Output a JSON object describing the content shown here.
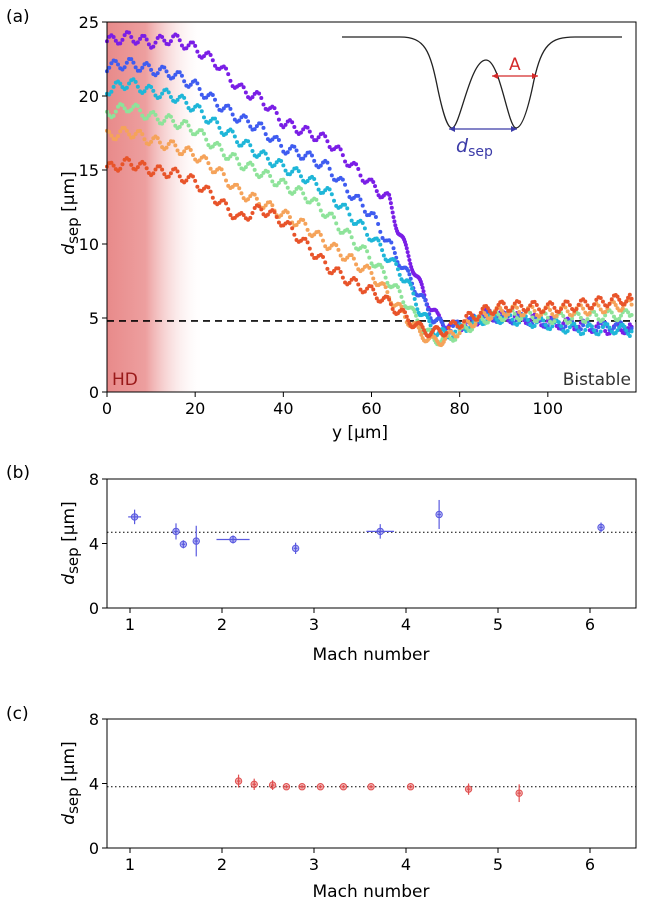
{
  "chart_data": [
    {
      "panel_label": "(a)",
      "type": "scatter",
      "xlabel": "y [μm]",
      "ylabel_main": "d",
      "ylabel_sub": "sep",
      "ylabel_unit": " [μm]",
      "xlim": [
        0,
        120
      ],
      "ylim": [
        0,
        25
      ],
      "xticks": [
        0,
        20,
        40,
        60,
        80,
        100
      ],
      "yticks": [
        0,
        5,
        10,
        15,
        20,
        25
      ],
      "hline": 4.8,
      "shaded_region": {
        "x": [
          0,
          22
        ],
        "label": "HD"
      },
      "annotation_right": "Bistable",
      "inset": {
        "label_width": "A",
        "label_sep": "d",
        "label_sep_sub": "sep"
      },
      "series": [
        {
          "color": "#7a1ee6",
          "points": [
            [
              0,
              23.7
            ],
            [
              5,
              24.0
            ],
            [
              10,
              23.6
            ],
            [
              15,
              23.9
            ],
            [
              20,
              23.2
            ],
            [
              25,
              22.2
            ],
            [
              30,
              20.5
            ],
            [
              35,
              19.8
            ],
            [
              40,
              18.2
            ],
            [
              45,
              17.6
            ],
            [
              50,
              17.0
            ],
            [
              55,
              15.5
            ],
            [
              60,
              14.0
            ],
            [
              64,
              13.0
            ],
            [
              66,
              11.0
            ],
            [
              68,
              9.5
            ],
            [
              70,
              8.0
            ],
            [
              72,
              6.5
            ],
            [
              75,
              5.0
            ],
            [
              78,
              4.4
            ],
            [
              82,
              4.6
            ],
            [
              86,
              5.2
            ],
            [
              90,
              5.1
            ],
            [
              95,
              5.0
            ],
            [
              100,
              4.7
            ],
            [
              105,
              4.6
            ],
            [
              110,
              4.4
            ],
            [
              115,
              4.2
            ],
            [
              119,
              4.4
            ]
          ]
        },
        {
          "color": "#3f5cf0",
          "points": [
            [
              0,
              22.0
            ],
            [
              5,
              22.2
            ],
            [
              10,
              21.8
            ],
            [
              15,
              21.5
            ],
            [
              20,
              20.7
            ],
            [
              25,
              19.5
            ],
            [
              30,
              18.5
            ],
            [
              35,
              17.8
            ],
            [
              40,
              16.5
            ],
            [
              45,
              16.0
            ],
            [
              50,
              15.2
            ],
            [
              55,
              13.5
            ],
            [
              60,
              12.0
            ],
            [
              65,
              9.5
            ],
            [
              68,
              8.0
            ],
            [
              71,
              6.5
            ],
            [
              74,
              5.0
            ],
            [
              77,
              4.2
            ],
            [
              82,
              4.7
            ],
            [
              86,
              5.2
            ],
            [
              90,
              5.0
            ],
            [
              95,
              4.9
            ],
            [
              100,
              4.7
            ],
            [
              105,
              4.5
            ],
            [
              110,
              4.4
            ],
            [
              115,
              4.5
            ],
            [
              119,
              4.3
            ]
          ]
        },
        {
          "color": "#1fb6d8",
          "points": [
            [
              0,
              20.4
            ],
            [
              5,
              20.9
            ],
            [
              10,
              20.3
            ],
            [
              15,
              20.0
            ],
            [
              20,
              19.2
            ],
            [
              25,
              18.0
            ],
            [
              30,
              17.0
            ],
            [
              35,
              16.0
            ],
            [
              40,
              15.2
            ],
            [
              45,
              14.5
            ],
            [
              50,
              13.5
            ],
            [
              55,
              12.0
            ],
            [
              60,
              10.5
            ],
            [
              64,
              9.0
            ],
            [
              68,
              7.5
            ],
            [
              71,
              5.5
            ],
            [
              74,
              4.2
            ],
            [
              77,
              3.8
            ],
            [
              82,
              4.5
            ],
            [
              86,
              5.0
            ],
            [
              90,
              5.0
            ],
            [
              95,
              4.8
            ],
            [
              100,
              4.6
            ],
            [
              105,
              4.3
            ],
            [
              110,
              4.2
            ],
            [
              115,
              4.3
            ],
            [
              119,
              4.1
            ]
          ]
        },
        {
          "color": "#8ee39a",
          "points": [
            [
              0,
              18.8
            ],
            [
              5,
              19.3
            ],
            [
              10,
              18.6
            ],
            [
              15,
              18.3
            ],
            [
              20,
              17.7
            ],
            [
              25,
              16.5
            ],
            [
              30,
              15.5
            ],
            [
              35,
              14.8
            ],
            [
              40,
              14.0
            ],
            [
              45,
              13.3
            ],
            [
              50,
              12.0
            ],
            [
              55,
              10.5
            ],
            [
              60,
              9.0
            ],
            [
              64,
              7.5
            ],
            [
              68,
              6.0
            ],
            [
              71,
              4.5
            ],
            [
              74,
              3.6
            ],
            [
              77,
              3.5
            ],
            [
              82,
              4.4
            ],
            [
              86,
              5.0
            ],
            [
              90,
              5.2
            ],
            [
              95,
              5.2
            ],
            [
              100,
              5.0
            ],
            [
              105,
              5.0
            ],
            [
              110,
              5.1
            ],
            [
              115,
              5.2
            ],
            [
              119,
              5.2
            ]
          ]
        },
        {
          "color": "#f5a35a",
          "points": [
            [
              0,
              17.3
            ],
            [
              5,
              17.6
            ],
            [
              10,
              17.0
            ],
            [
              15,
              16.6
            ],
            [
              20,
              16.0
            ],
            [
              25,
              15.0
            ],
            [
              30,
              13.5
            ],
            [
              35,
              12.8
            ],
            [
              40,
              12.0
            ],
            [
              45,
              11.2
            ],
            [
              50,
              10.0
            ],
            [
              55,
              9.0
            ],
            [
              60,
              8.0
            ],
            [
              64,
              6.5
            ],
            [
              68,
              5.0
            ],
            [
              71,
              4.0
            ],
            [
              74,
              3.4
            ],
            [
              77,
              3.6
            ],
            [
              82,
              4.6
            ],
            [
              86,
              5.2
            ],
            [
              90,
              5.5
            ],
            [
              95,
              5.5
            ],
            [
              100,
              5.4
            ],
            [
              105,
              5.5
            ],
            [
              110,
              5.6
            ],
            [
              115,
              5.8
            ],
            [
              119,
              5.9
            ]
          ]
        },
        {
          "color": "#e8542a",
          "points": [
            [
              0,
              15.1
            ],
            [
              5,
              15.5
            ],
            [
              10,
              15.0
            ],
            [
              15,
              14.8
            ],
            [
              20,
              14.2
            ],
            [
              25,
              13.0
            ],
            [
              30,
              11.7
            ],
            [
              35,
              12.4
            ],
            [
              40,
              11.5
            ],
            [
              45,
              10.0
            ],
            [
              50,
              8.5
            ],
            [
              55,
              7.5
            ],
            [
              60,
              6.8
            ],
            [
              64,
              6.0
            ],
            [
              68,
              5.0
            ],
            [
              71,
              4.3
            ],
            [
              74,
              4.0
            ],
            [
              77,
              4.2
            ],
            [
              82,
              5.0
            ],
            [
              86,
              5.5
            ],
            [
              90,
              5.8
            ],
            [
              95,
              5.8
            ],
            [
              100,
              5.7
            ],
            [
              105,
              5.8
            ],
            [
              110,
              6.0
            ],
            [
              115,
              6.2
            ],
            [
              119,
              6.3
            ]
          ]
        }
      ]
    },
    {
      "panel_label": "(b)",
      "type": "scatter",
      "xlabel": "Mach number",
      "ylabel_main": "d",
      "ylabel_sub": "sep",
      "ylabel_unit": " [μm]",
      "xlim": [
        0.75,
        6.5
      ],
      "ylim": [
        0,
        8
      ],
      "xticks": [
        1,
        2,
        3,
        4,
        5,
        6
      ],
      "yticks": [
        0,
        4,
        8
      ],
      "hline": 4.7,
      "color": "#5a5ae0",
      "points": [
        {
          "x": 1.05,
          "y": 5.65,
          "xerr": 0.07,
          "yerr": 0.45
        },
        {
          "x": 1.5,
          "y": 4.75,
          "xerr": 0.02,
          "yerr": 0.5
        },
        {
          "x": 1.58,
          "y": 3.95,
          "xerr": 0.02,
          "yerr": 0.25
        },
        {
          "x": 1.72,
          "y": 4.15,
          "xerr": 0.02,
          "yerr": 0.95
        },
        {
          "x": 2.12,
          "y": 4.25,
          "xerr": 0.18,
          "yerr": 0.25
        },
        {
          "x": 2.8,
          "y": 3.7,
          "xerr": 0.02,
          "yerr": 0.35
        },
        {
          "x": 3.72,
          "y": 4.75,
          "xerr": 0.15,
          "yerr": 0.45
        },
        {
          "x": 4.36,
          "y": 5.8,
          "xerr": 0.02,
          "yerr": 0.9
        },
        {
          "x": 6.12,
          "y": 5.0,
          "xerr": 0.02,
          "yerr": 0.3
        }
      ]
    },
    {
      "panel_label": "(c)",
      "type": "scatter",
      "xlabel": "Mach number",
      "ylabel_main": "d",
      "ylabel_sub": "sep",
      "ylabel_unit": " [μm]",
      "xlim": [
        0.75,
        6.5
      ],
      "ylim": [
        0,
        8
      ],
      "xticks": [
        1,
        2,
        3,
        4,
        5,
        6
      ],
      "yticks": [
        0,
        4,
        8
      ],
      "hline": 3.8,
      "color": "#e05050",
      "points": [
        {
          "x": 2.18,
          "y": 4.15,
          "xerr": 0.02,
          "yerr": 0.4
        },
        {
          "x": 2.35,
          "y": 3.95,
          "xerr": 0.02,
          "yerr": 0.35
        },
        {
          "x": 2.55,
          "y": 3.9,
          "xerr": 0.02,
          "yerr": 0.3
        },
        {
          "x": 2.7,
          "y": 3.8,
          "xerr": 0.02,
          "yerr": 0.1
        },
        {
          "x": 2.87,
          "y": 3.8,
          "xerr": 0.02,
          "yerr": 0.1
        },
        {
          "x": 3.07,
          "y": 3.8,
          "xerr": 0.02,
          "yerr": 0.1
        },
        {
          "x": 3.32,
          "y": 3.8,
          "xerr": 0.02,
          "yerr": 0.1
        },
        {
          "x": 3.62,
          "y": 3.8,
          "xerr": 0.02,
          "yerr": 0.1
        },
        {
          "x": 4.05,
          "y": 3.8,
          "xerr": 0.02,
          "yerr": 0.1
        },
        {
          "x": 4.68,
          "y": 3.65,
          "xerr": 0.02,
          "yerr": 0.35
        },
        {
          "x": 5.23,
          "y": 3.4,
          "xerr": 0.02,
          "yerr": 0.55
        }
      ]
    }
  ]
}
